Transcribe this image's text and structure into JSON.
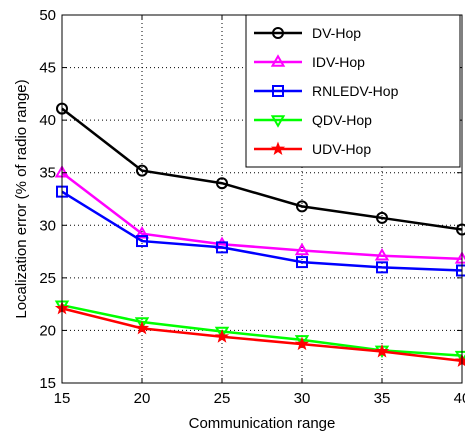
{
  "chart_data": {
    "type": "line",
    "xlabel": "Communication range",
    "ylabel": "Localization error (% of radio range)",
    "xlim": [
      15,
      40
    ],
    "ylim": [
      15,
      50
    ],
    "x_ticks": [
      "15",
      "20",
      "25",
      "30",
      "35",
      "40"
    ],
    "y_ticks": [
      "15",
      "20",
      "25",
      "30",
      "35",
      "40",
      "45",
      "50"
    ],
    "grid": true,
    "legend_position": "top-right",
    "x": [
      15,
      20,
      25,
      30,
      35,
      40
    ],
    "series": [
      {
        "name": "DV-Hop",
        "color": "#000000",
        "marker": "circle",
        "values": [
          41.1,
          35.2,
          34.0,
          31.8,
          30.7,
          29.6
        ]
      },
      {
        "name": "IDV-Hop",
        "color": "#ff00ff",
        "marker": "triangle-up",
        "values": [
          35.0,
          29.2,
          28.2,
          27.6,
          27.1,
          26.8
        ]
      },
      {
        "name": "RNLEDV-Hop",
        "color": "#0000ff",
        "marker": "square",
        "values": [
          33.2,
          28.5,
          27.9,
          26.5,
          26.0,
          25.7
        ]
      },
      {
        "name": "QDV-Hop",
        "color": "#00ff00",
        "marker": "triangle-down",
        "values": [
          22.4,
          20.8,
          19.9,
          19.1,
          18.1,
          17.6
        ]
      },
      {
        "name": "UDV-Hop",
        "color": "#ff0000",
        "marker": "star",
        "values": [
          22.1,
          20.2,
          19.4,
          18.7,
          18.0,
          17.1
        ]
      }
    ]
  }
}
